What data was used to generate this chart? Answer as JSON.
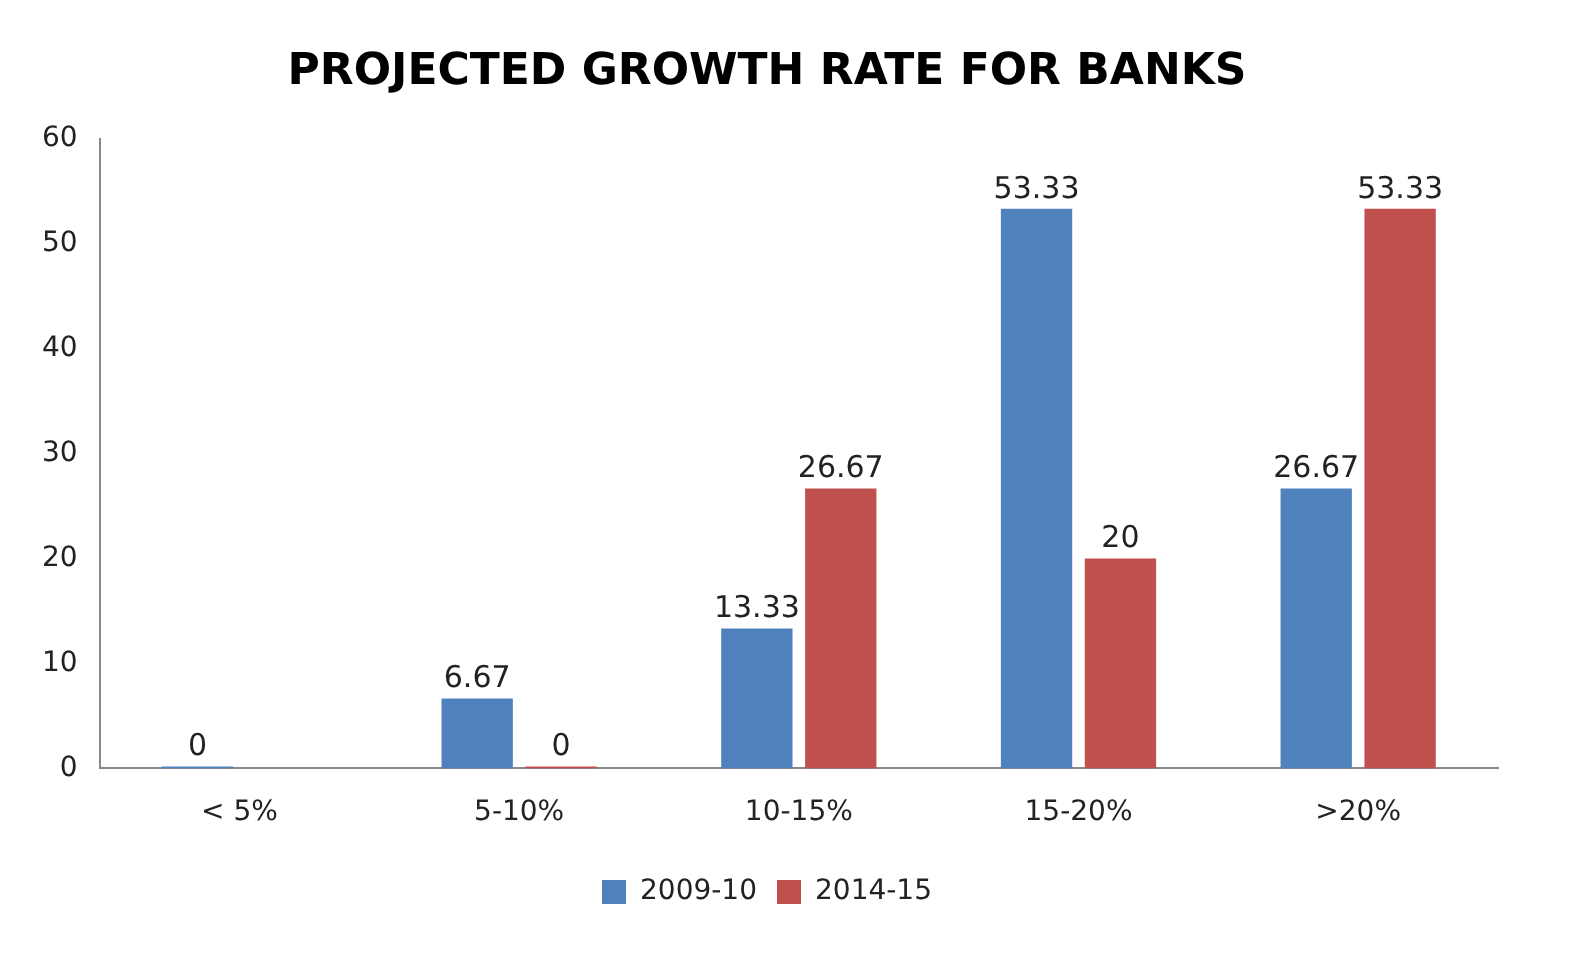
{
  "chart_data": {
    "type": "bar",
    "title": "PROJECTED GROWTH RATE FOR BANKS",
    "categories": [
      "< 5%",
      "5-10%",
      "10-15%",
      "15-20%",
      ">20%"
    ],
    "series": [
      {
        "name": "2009-10",
        "color": "#4f81bd",
        "values": [
          0,
          6.67,
          13.33,
          53.33,
          26.67
        ]
      },
      {
        "name": "2014-15",
        "color": "#c0504d",
        "values": [
          null,
          0,
          26.67,
          20,
          53.33
        ]
      }
    ],
    "ylim": [
      0,
      60
    ],
    "yticks": [
      0,
      10,
      20,
      30,
      40,
      50,
      60
    ],
    "grid": false,
    "legend": "bottom",
    "data_labels": true
  }
}
